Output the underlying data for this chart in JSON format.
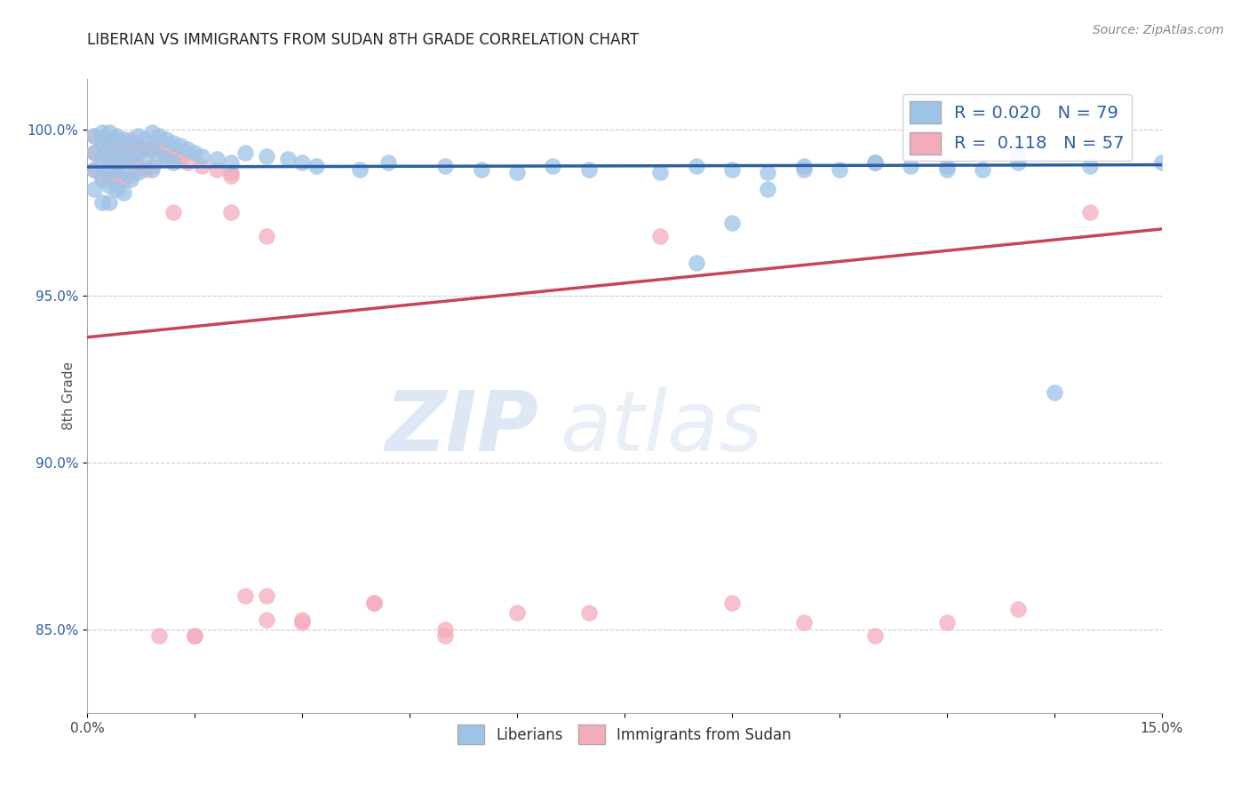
{
  "title": "LIBERIAN VS IMMIGRANTS FROM SUDAN 8TH GRADE CORRELATION CHART",
  "source_text": "Source: ZipAtlas.com",
  "ylabel": "8th Grade",
  "xlim": [
    0.0,
    0.15
  ],
  "ylim": [
    0.825,
    1.015
  ],
  "xticks": [
    0.0,
    0.015,
    0.03,
    0.045,
    0.06,
    0.075,
    0.09,
    0.105,
    0.12,
    0.135,
    0.15
  ],
  "yticks": [
    0.85,
    0.9,
    0.95,
    1.0
  ],
  "ytick_labels": [
    "85.0%",
    "90.0%",
    "95.0%",
    "100.0%"
  ],
  "xtick_labels": [
    "0.0%",
    "",
    "",
    "",
    "",
    "",
    "",
    "",
    "",
    "",
    "15.0%"
  ],
  "blue_R": 0.02,
  "blue_N": 79,
  "pink_R": 0.118,
  "pink_N": 57,
  "blue_color": "#9DC3E6",
  "pink_color": "#F4ACBB",
  "blue_line_color": "#2E5FA3",
  "pink_line_color": "#C9445A",
  "watermark_zip": "ZIP",
  "watermark_atlas": "atlas",
  "blue_x": [
    0.001,
    0.001,
    0.001,
    0.001,
    0.002,
    0.002,
    0.002,
    0.002,
    0.002,
    0.003,
    0.003,
    0.003,
    0.003,
    0.003,
    0.003,
    0.004,
    0.004,
    0.004,
    0.004,
    0.005,
    0.005,
    0.005,
    0.005,
    0.006,
    0.006,
    0.006,
    0.007,
    0.007,
    0.007,
    0.008,
    0.008,
    0.009,
    0.009,
    0.009,
    0.01,
    0.01,
    0.011,
    0.011,
    0.012,
    0.012,
    0.013,
    0.014,
    0.015,
    0.016,
    0.018,
    0.02,
    0.022,
    0.025,
    0.028,
    0.03,
    0.032,
    0.038,
    0.042,
    0.05,
    0.055,
    0.06,
    0.065,
    0.07,
    0.08,
    0.085,
    0.09,
    0.095,
    0.1,
    0.105,
    0.11,
    0.115,
    0.125,
    0.13,
    0.135,
    0.14,
    0.1,
    0.11,
    0.12,
    0.13,
    0.12,
    0.085,
    0.09,
    0.095,
    0.15
  ],
  "blue_y": [
    0.998,
    0.993,
    0.988,
    0.982,
    0.999,
    0.995,
    0.99,
    0.985,
    0.978,
    0.999,
    0.996,
    0.992,
    0.988,
    0.983,
    0.978,
    0.998,
    0.993,
    0.988,
    0.982,
    0.997,
    0.992,
    0.987,
    0.981,
    0.996,
    0.991,
    0.985,
    0.998,
    0.993,
    0.987,
    0.997,
    0.991,
    0.999,
    0.994,
    0.988,
    0.998,
    0.992,
    0.997,
    0.991,
    0.996,
    0.99,
    0.995,
    0.994,
    0.993,
    0.992,
    0.991,
    0.99,
    0.993,
    0.992,
    0.991,
    0.99,
    0.989,
    0.988,
    0.99,
    0.989,
    0.988,
    0.987,
    0.989,
    0.988,
    0.987,
    0.989,
    0.988,
    0.987,
    0.989,
    0.988,
    0.99,
    0.989,
    0.988,
    0.99,
    0.921,
    0.989,
    0.988,
    0.99,
    0.989,
    0.992,
    0.988,
    0.96,
    0.972,
    0.982,
    0.99
  ],
  "pink_x": [
    0.001,
    0.001,
    0.001,
    0.002,
    0.002,
    0.002,
    0.003,
    0.003,
    0.003,
    0.004,
    0.004,
    0.004,
    0.005,
    0.005,
    0.005,
    0.006,
    0.006,
    0.006,
    0.007,
    0.007,
    0.008,
    0.008,
    0.009,
    0.009,
    0.01,
    0.011,
    0.012,
    0.013,
    0.014,
    0.016,
    0.018,
    0.02,
    0.022,
    0.025,
    0.015,
    0.02,
    0.025,
    0.03,
    0.04,
    0.05,
    0.06,
    0.07,
    0.08,
    0.09,
    0.1,
    0.11,
    0.12,
    0.13,
    0.14,
    0.01,
    0.012,
    0.015,
    0.02,
    0.025,
    0.03,
    0.04,
    0.05
  ],
  "pink_y": [
    0.998,
    0.993,
    0.988,
    0.997,
    0.992,
    0.986,
    0.996,
    0.991,
    0.985,
    0.997,
    0.992,
    0.986,
    0.996,
    0.991,
    0.985,
    0.997,
    0.992,
    0.986,
    0.995,
    0.989,
    0.994,
    0.988,
    0.995,
    0.989,
    0.994,
    0.993,
    0.992,
    0.991,
    0.99,
    0.989,
    0.988,
    0.987,
    0.86,
    0.853,
    0.848,
    0.975,
    0.968,
    0.852,
    0.858,
    0.85,
    0.855,
    0.855,
    0.968,
    0.858,
    0.852,
    0.848,
    0.852,
    0.856,
    0.975,
    0.848,
    0.975,
    0.848,
    0.986,
    0.86,
    0.853,
    0.858,
    0.848
  ]
}
